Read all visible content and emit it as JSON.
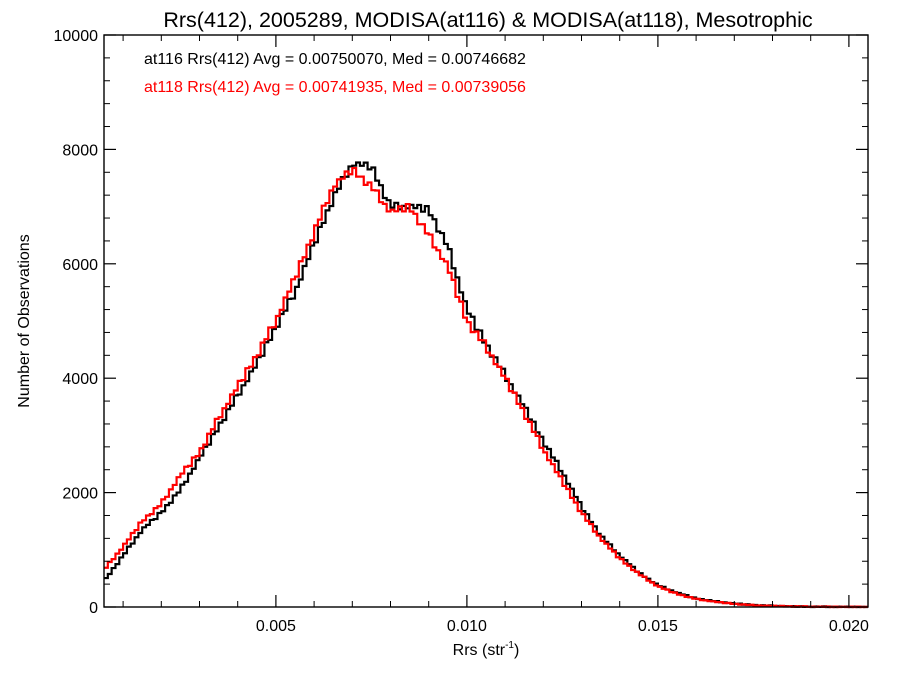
{
  "chart_data": {
    "type": "line",
    "title": "Rrs(412), 2005289, MODISA(at116) & MODISA(at118), Mesotrophic",
    "xlabel": "Rrs (str",
    "xlabel_sup": "-1",
    "xlabel_close": ")",
    "ylabel": "Number of Observations",
    "xlim": [
      0.0005,
      0.0205
    ],
    "ylim": [
      0,
      10000
    ],
    "xticks": [
      0.005,
      0.01,
      0.015,
      0.02
    ],
    "xtick_labels": [
      "0.005",
      "0.010",
      "0.015",
      "0.020"
    ],
    "yticks": [
      0,
      2000,
      4000,
      6000,
      8000,
      10000
    ],
    "ytick_labels": [
      "0",
      "2000",
      "4000",
      "6000",
      "8000",
      "10000"
    ],
    "grid": false,
    "legend_position": "top-left",
    "series": [
      {
        "name": "at116 Rrs(412) Avg = 0.00750070, Med = 0.00746682",
        "color": "#000000",
        "x": [
          0.0005,
          0.001,
          0.0015,
          0.002,
          0.0025,
          0.003,
          0.0035,
          0.004,
          0.0045,
          0.005,
          0.0055,
          0.006,
          0.0065,
          0.007,
          0.0075,
          0.008,
          0.0085,
          0.009,
          0.0095,
          0.01,
          0.0105,
          0.011,
          0.0115,
          0.012,
          0.0125,
          0.013,
          0.0135,
          0.014,
          0.0145,
          0.015,
          0.0155,
          0.016,
          0.0165,
          0.017,
          0.0175,
          0.018,
          0.0185,
          0.019,
          0.0195,
          0.02,
          0.0205
        ],
        "y": [
          450,
          900,
          1350,
          1650,
          2050,
          2600,
          3150,
          3700,
          4250,
          4900,
          5500,
          6350,
          7150,
          7750,
          7700,
          7000,
          7000,
          6950,
          6300,
          5200,
          4600,
          4050,
          3500,
          2900,
          2350,
          1750,
          1250,
          900,
          600,
          380,
          250,
          150,
          100,
          60,
          35,
          20,
          10,
          5,
          3,
          2,
          1
        ]
      },
      {
        "name": "at118 Rrs(412) Avg = 0.00741935, Med = 0.00739056",
        "color": "#ff0000",
        "x": [
          0.0005,
          0.001,
          0.0015,
          0.002,
          0.0025,
          0.003,
          0.0035,
          0.004,
          0.0045,
          0.005,
          0.0055,
          0.006,
          0.0065,
          0.007,
          0.0075,
          0.008,
          0.0085,
          0.009,
          0.0095,
          0.01,
          0.0105,
          0.011,
          0.0115,
          0.012,
          0.0125,
          0.013,
          0.0135,
          0.014,
          0.0145,
          0.015,
          0.0155,
          0.016,
          0.0165,
          0.017,
          0.0175,
          0.018,
          0.0185,
          0.019,
          0.0195,
          0.02,
          0.0205
        ],
        "y": [
          650,
          1050,
          1500,
          1800,
          2300,
          2700,
          3300,
          3850,
          4400,
          5000,
          5750,
          6550,
          7350,
          7650,
          7350,
          6900,
          7000,
          6500,
          5950,
          5000,
          4550,
          4000,
          3400,
          2750,
          2200,
          1650,
          1200,
          850,
          580,
          360,
          230,
          140,
          90,
          55,
          30,
          18,
          10,
          5,
          3,
          2,
          1
        ]
      }
    ]
  }
}
